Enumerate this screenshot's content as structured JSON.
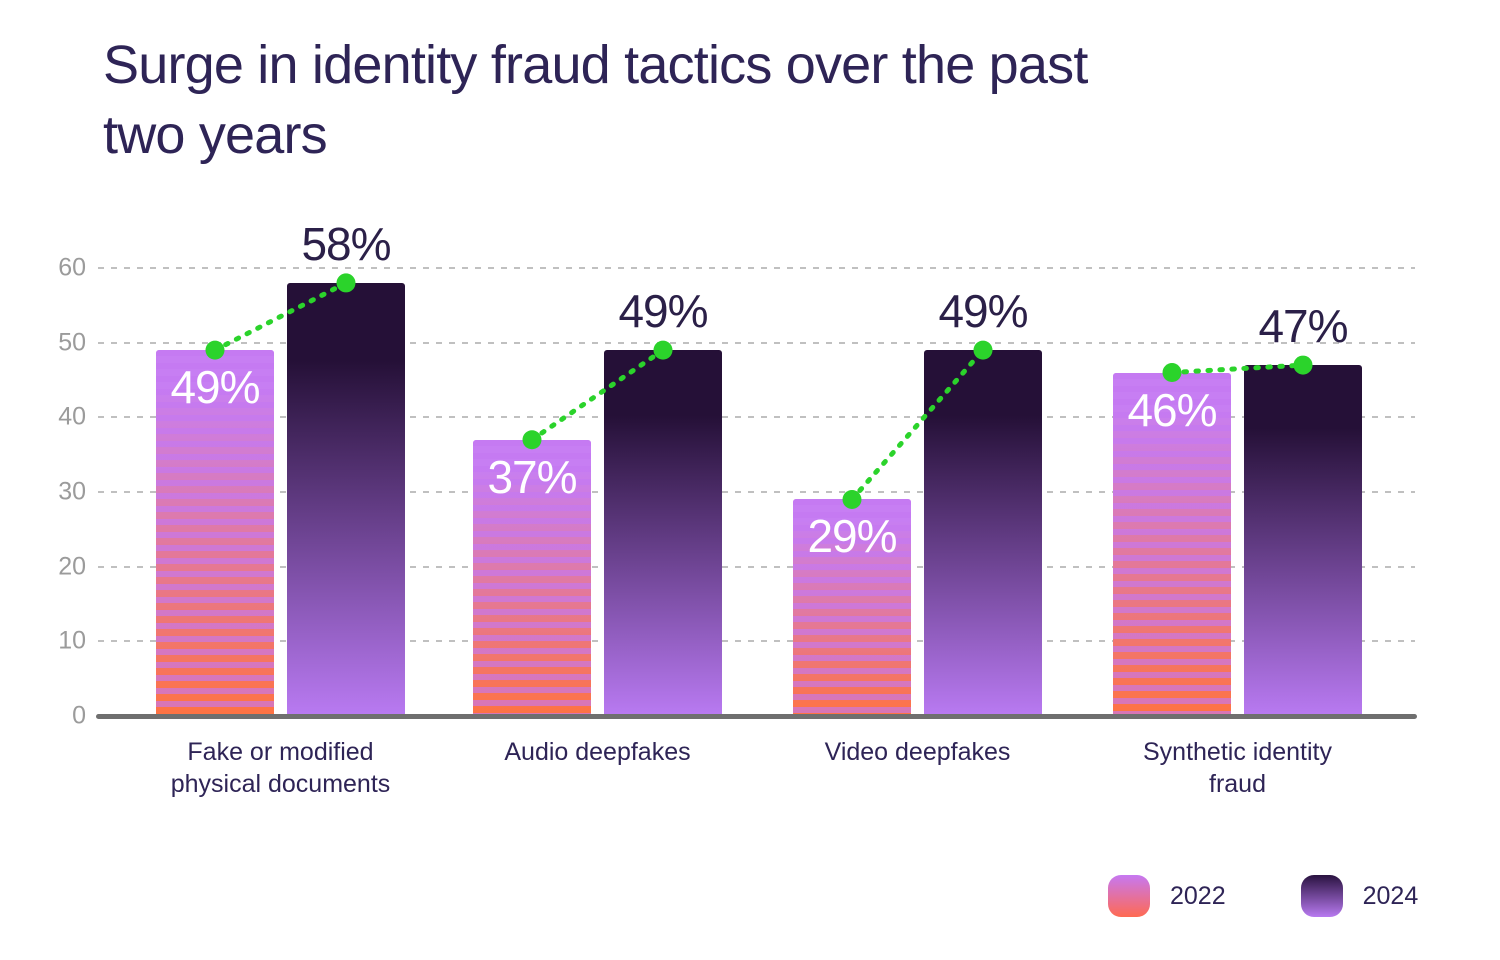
{
  "title": "Surge in identity fraud tactics over the past\ntwo years",
  "legend": {
    "items": [
      {
        "label": "2022"
      },
      {
        "label": "2024"
      }
    ]
  },
  "colors": {
    "title_text": "#2e2456",
    "axis_tick_text": "#9b9b9b",
    "grid_line": "#c0c0c0",
    "axis_line": "#6f6f6f",
    "connector_green": "#2bd32b",
    "value_label_2022": "#ffffff",
    "value_label_2024": "#2b2048",
    "bar_2022_top": "#c77ef3",
    "bar_2022_bottom": "#ff7342",
    "bar_2022_stripe": "rgba(196,120,242,0.65)",
    "bar_2024_top": "#251037",
    "bar_2024_bottom": "#b97af2",
    "legend_2022_top": "#c678f2",
    "legend_2022_bottom": "#ff6a52",
    "legend_2024_top": "#2a1340",
    "legend_2024_bottom": "#b87af0"
  },
  "chart_data": {
    "type": "bar",
    "title": "Surge in identity fraud tactics over the past two years",
    "categories": [
      "Fake or modified\nphysical documents",
      "Audio deepfakes",
      "Video deepfakes",
      "Synthetic identity\nfraud"
    ],
    "series": [
      {
        "name": "2022",
        "values": [
          49,
          37,
          29,
          46
        ],
        "unit": "%"
      },
      {
        "name": "2024",
        "values": [
          58,
          49,
          49,
          47
        ],
        "unit": "%"
      }
    ],
    "xlabel": "",
    "ylabel": "",
    "ylim": [
      0,
      60
    ],
    "yticks": [
      0,
      10,
      20,
      30,
      40,
      50,
      60
    ],
    "grid": "horizontal-dashed",
    "legend_position": "bottom-right",
    "annotations": [
      {
        "type": "connector",
        "from_series": "2022",
        "to_series": "2024",
        "style": "green dotted line with dots at bar tops"
      }
    ]
  }
}
